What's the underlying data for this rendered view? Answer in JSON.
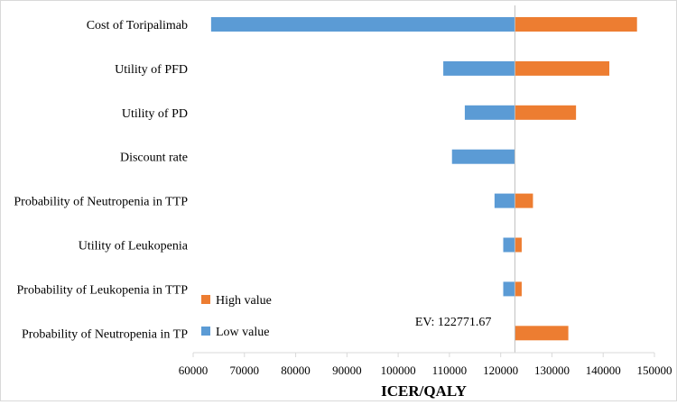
{
  "chart_data": {
    "type": "bar",
    "orientation": "horizontal",
    "subtype": "tornado",
    "title": "",
    "xlabel": "ICER/QALY",
    "ylabel": "",
    "xlim": [
      60000,
      150000
    ],
    "xticks": [
      60000,
      70000,
      80000,
      90000,
      100000,
      110000,
      120000,
      130000,
      140000,
      150000
    ],
    "grid": false,
    "legend_position": "bottom-left",
    "base_value": 122771.67,
    "base_label": "EV: 122771.67",
    "colors": {
      "low": "#5b9bd5",
      "high": "#ed7d31",
      "baseline": "#bfbfbf",
      "axis": "#d9d9d9"
    },
    "categories": [
      "Cost of Toripalimab",
      "Utility of PFD",
      "Utility of PD",
      "Discount rate",
      "Probability of Neutropenia in TTP",
      "Utility of Leukopenia",
      "Probability of Leukopenia in TTP",
      "Probability of Neutropenia in TP"
    ],
    "series": [
      {
        "name": "Low value",
        "color": "#5b9bd5",
        "values": [
          63500,
          108800,
          113000,
          110500,
          118800,
          120500,
          120500,
          null
        ]
      },
      {
        "name": "High value",
        "color": "#ed7d31",
        "values": [
          146600,
          141200,
          134700,
          null,
          126300,
          124100,
          124100,
          133200
        ]
      }
    ],
    "legend": [
      {
        "label": "High value",
        "color": "#ed7d31"
      },
      {
        "label": "Low value",
        "color": "#5b9bd5"
      }
    ]
  }
}
